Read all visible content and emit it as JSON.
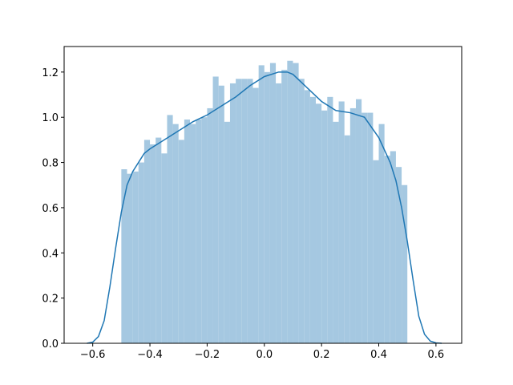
{
  "chart_data": {
    "type": "histogram",
    "bins": [
      -0.5,
      -0.48,
      -0.46,
      -0.44,
      -0.42,
      -0.4,
      -0.38,
      -0.36,
      -0.34,
      -0.32,
      -0.3,
      -0.28,
      -0.26,
      -0.24,
      -0.22,
      -0.2,
      -0.18,
      -0.16,
      -0.14,
      -0.12,
      -0.1,
      -0.08,
      -0.06,
      -0.04,
      -0.02,
      0,
      0.02,
      0.04,
      0.06,
      0.08,
      0.1,
      0.12,
      0.14,
      0.16,
      0.18,
      0.2,
      0.22,
      0.24,
      0.26,
      0.28,
      0.3,
      0.32,
      0.34,
      0.36,
      0.38,
      0.4,
      0.42,
      0.44,
      0.46,
      0.48,
      0.5
    ],
    "values": [
      0.77,
      0.75,
      0.76,
      0.8,
      0.9,
      0.88,
      0.91,
      0.84,
      1.01,
      0.97,
      0.9,
      0.99,
      0.97,
      0.99,
      1.0,
      1.04,
      1.18,
      1.14,
      0.98,
      1.15,
      1.17,
      1.17,
      1.17,
      1.13,
      1.23,
      1.2,
      1.24,
      1.15,
      1.21,
      1.25,
      1.24,
      1.17,
      1.12,
      1.09,
      1.06,
      1.03,
      1.09,
      0.98,
      1.07,
      0.92,
      1.04,
      1.08,
      1.02,
      1.02,
      0.81,
      0.97,
      0.83,
      0.85,
      0.78,
      0.7
    ],
    "color": "#a5c8e1",
    "kde": {
      "color": "#1f77b4",
      "x": [
        -0.62,
        -0.6,
        -0.58,
        -0.56,
        -0.54,
        -0.52,
        -0.5,
        -0.48,
        -0.46,
        -0.44,
        -0.42,
        -0.4,
        -0.35,
        -0.3,
        -0.25,
        -0.2,
        -0.15,
        -0.1,
        -0.05,
        0,
        0.05,
        0.08,
        0.1,
        0.15,
        0.2,
        0.25,
        0.3,
        0.35,
        0.4,
        0.44,
        0.46,
        0.48,
        0.5,
        0.52,
        0.54,
        0.56,
        0.58,
        0.6,
        0.62
      ],
      "values": [
        0,
        0.005,
        0.03,
        0.1,
        0.25,
        0.42,
        0.58,
        0.7,
        0.76,
        0.8,
        0.84,
        0.86,
        0.9,
        0.94,
        0.98,
        1.01,
        1.05,
        1.09,
        1.14,
        1.18,
        1.2,
        1.2,
        1.19,
        1.13,
        1.07,
        1.03,
        1.02,
        1.0,
        0.91,
        0.8,
        0.72,
        0.6,
        0.45,
        0.28,
        0.12,
        0.04,
        0.01,
        0.002,
        0
      ]
    },
    "xlim": [
      -0.7,
      0.69
    ],
    "ylim": [
      0,
      1.313
    ],
    "xticks": [
      {
        "value": -0.6,
        "label": "−0.6"
      },
      {
        "value": -0.4,
        "label": "−0.4"
      },
      {
        "value": -0.2,
        "label": "−0.2"
      },
      {
        "value": 0,
        "label": "0.0"
      },
      0.2,
      0.4,
      0.6
    ],
    "yticks": [
      {
        "value": 0,
        "label": "0.0"
      },
      0.2,
      0.4,
      0.6,
      0.8,
      {
        "value": 1,
        "label": "1.0"
      },
      1.2
    ]
  }
}
